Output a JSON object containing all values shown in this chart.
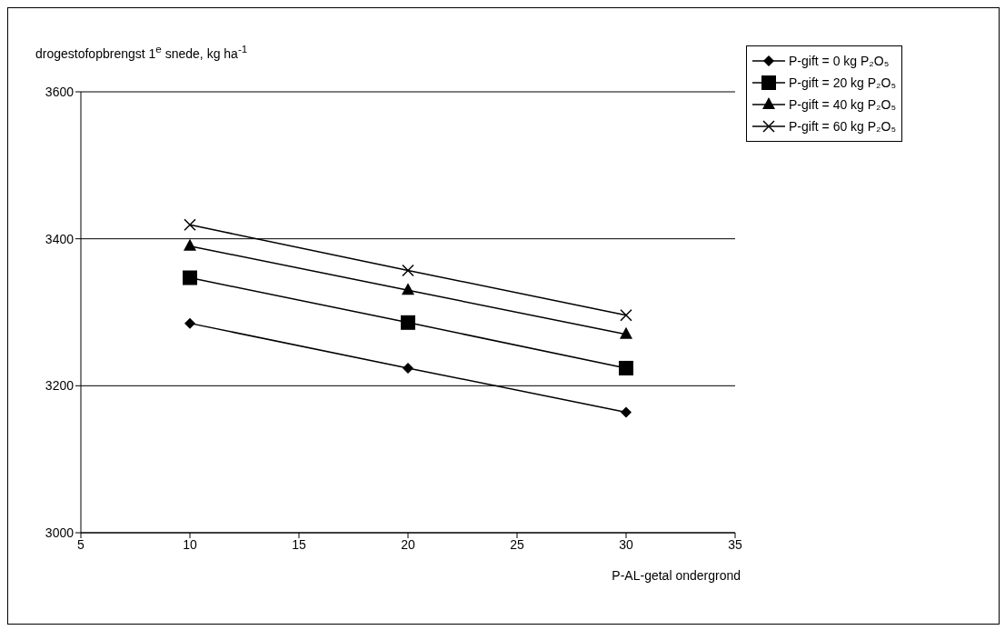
{
  "chart_data": {
    "type": "line",
    "ylabel": "drogestofopbrengst 1$^{e}$ snede, kg ha$^{-1}$",
    "xlabel": "P-AL-getal ondergrond",
    "x": [
      10,
      20,
      30
    ],
    "series": [
      {
        "name": "P-gift = 0 kg P₂O₅",
        "color": "#000000",
        "marker": "diamond",
        "values": [
          3285,
          3224,
          3164
        ]
      },
      {
        "name": "P-gift = 20 kg P₂O₅",
        "color": "#000000",
        "marker": "square",
        "values": [
          3347,
          3286,
          3224
        ]
      },
      {
        "name": "P-gift = 40 kg P₂O₅",
        "color": "#000000",
        "marker": "triangle",
        "values": [
          3390,
          3330,
          3270
        ]
      },
      {
        "name": "P-gift = 60 kg P₂O₅",
        "color": "#000000",
        "marker": "cross",
        "values": [
          3419,
          3357,
          3296
        ]
      }
    ],
    "xlim": [
      5,
      35
    ],
    "xticks": [
      5,
      10,
      15,
      20,
      25,
      30,
      35
    ],
    "ylim": [
      3000,
      3600
    ],
    "yticks": [
      3000,
      3200,
      3400,
      3600
    ],
    "grid": "y",
    "legend": "right",
    "line_style": "solid"
  }
}
